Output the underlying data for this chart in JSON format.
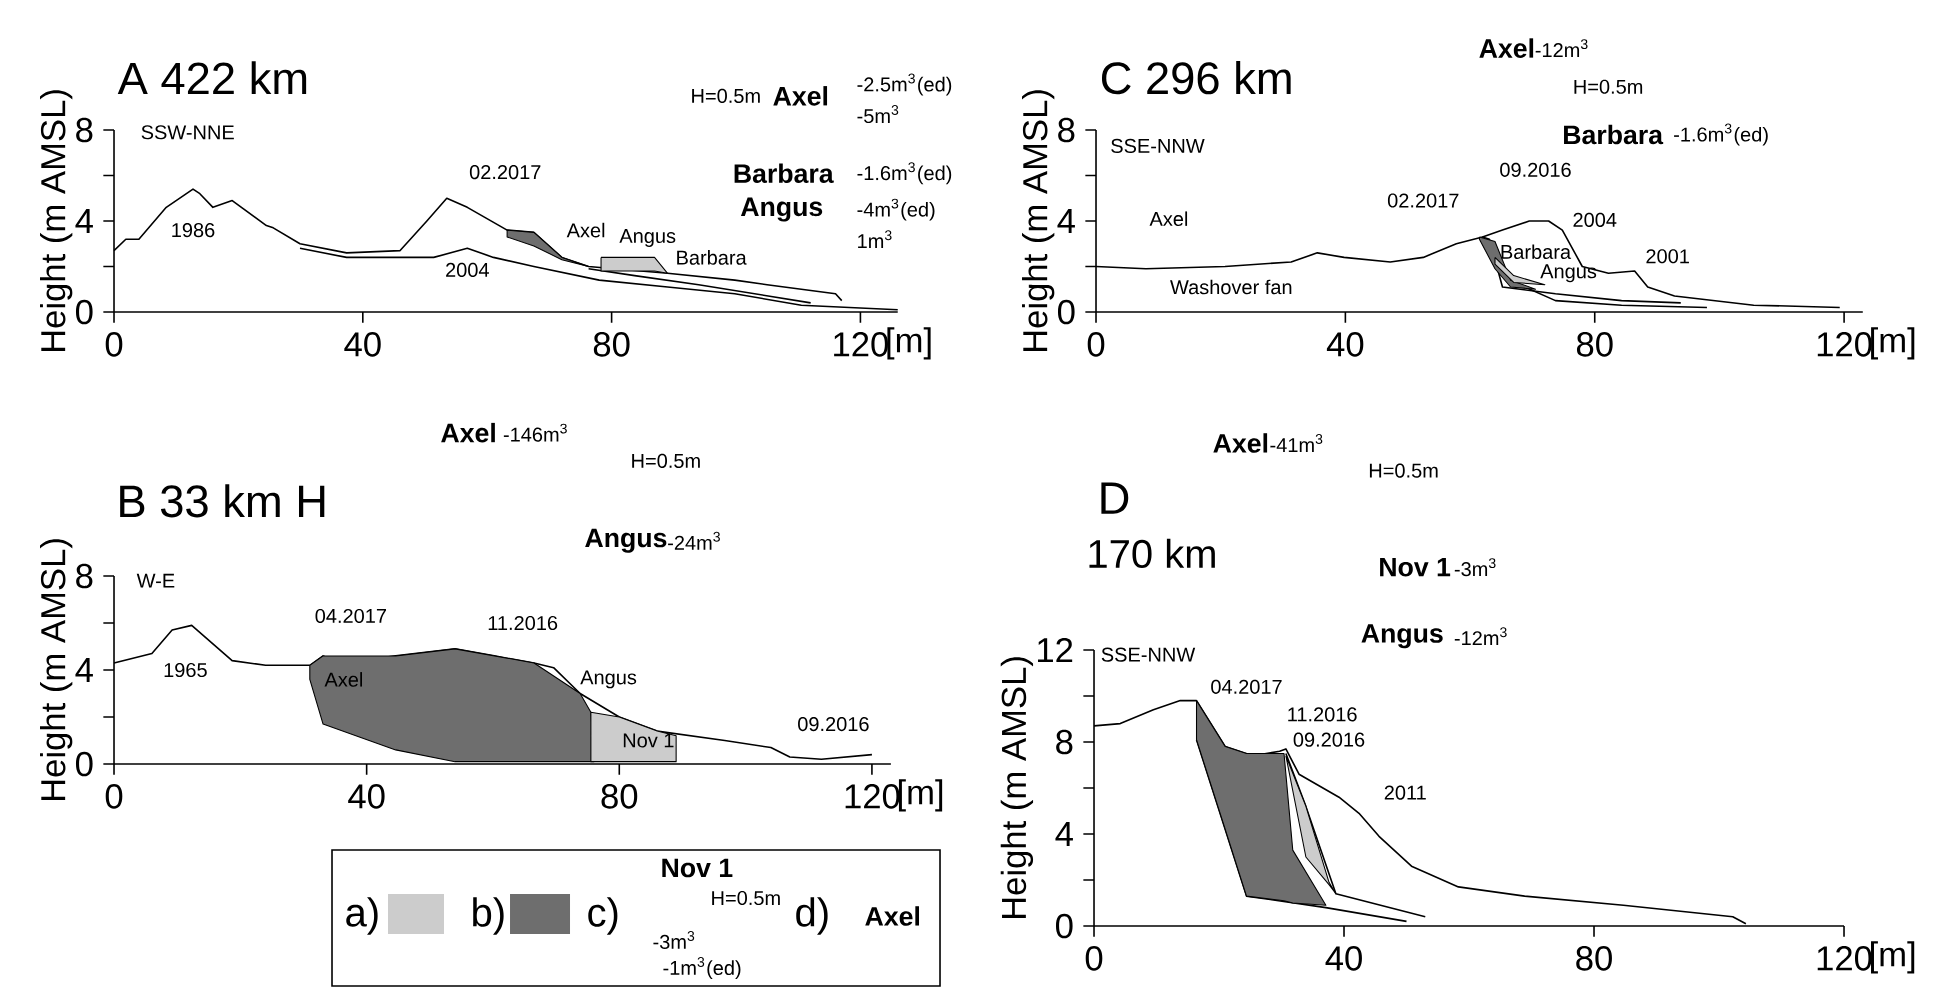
{
  "chart_data": [
    {
      "type": "line",
      "title": "A 422 km",
      "xlabel": "[m]",
      "ylabel": "Height (m AMSL)",
      "xlim": [
        0,
        126
      ],
      "ylim": [
        0,
        8
      ],
      "xticks": [
        0,
        40,
        80,
        120
      ],
      "yticks": [
        0,
        {
          "value": 2,
          "label": null
        },
        4,
        {
          "value": 6,
          "label": null
        },
        8
      ],
      "series": [
        {
          "color": "#000000",
          "x": [
            0,
            1.9,
            4,
            8.4,
            12.7,
            13.8,
            15.9,
            19,
            24.5,
            25.6,
            29.9,
            37.4,
            46,
            50.3,
            53.5,
            56.8,
            63.2,
            67.5,
            72,
            76.3,
            80.4,
            89,
            99.8,
            105,
            116,
            117
          ],
          "values": [
            2.7,
            3.2,
            3.2,
            4.6,
            5.4,
            5.2,
            4.6,
            4.9,
            3.8,
            3.7,
            3.0,
            2.6,
            2.7,
            4.0,
            5.0,
            4.6,
            3.6,
            3.5,
            2.4,
            2.0,
            1.9,
            1.7,
            1.4,
            1.2,
            0.8,
            0.5
          ]
        },
        {
          "color": "#000000",
          "x": [
            29.9,
            37.4,
            51.4,
            56.8,
            61,
            67.5,
            78,
            89,
            99.8,
            110.5,
            126
          ],
          "values": [
            2.8,
            2.4,
            2.4,
            2.8,
            2.4,
            2.0,
            1.4,
            1.1,
            0.8,
            0.3,
            0.1
          ]
        },
        {
          "color": "#000000",
          "x": [
            76.3,
            83.7,
            94,
            112
          ],
          "values": [
            1.9,
            1.6,
            1.2,
            0.4
          ]
        },
        {
          "type": "area",
          "color": "#6e6e6e",
          "x": [
            63.2,
            67.5,
            72,
            76.3,
            72,
            67.5,
            63.2
          ],
          "values": [
            3.6,
            3.5,
            2.4,
            2.0,
            2.3,
            2.9,
            3.3
          ]
        },
        {
          "type": "area",
          "color": "#cccccc",
          "x": [
            78.3,
            86.9,
            89,
            86.9,
            78.3
          ],
          "values": [
            2.4,
            2.4,
            1.7,
            1.8,
            1.8
          ]
        }
      ],
      "annotations": [
        "SSW-NNE",
        "H=0.5m",
        "Axel",
        "-2.5m$^{3}$(ed)",
        "-5m$^{3}$",
        "Barbara",
        "-1.6m$^{3}$(ed)",
        "Angus",
        "-4m$^{3}$(ed)",
        "1m$^{3}$",
        "1986",
        "02.2017",
        "2004",
        "Axel",
        "Angus",
        "Barbara"
      ]
    },
    {
      "type": "line",
      "title": "C 296 km",
      "xlabel": "[m]",
      "ylabel": "Height (m AMSL)",
      "xlim": [
        0,
        123
      ],
      "ylim": [
        0,
        8
      ],
      "xticks": [
        0,
        40,
        80,
        120
      ],
      "yticks": [
        0,
        {
          "value": 2,
          "label": null
        },
        4,
        {
          "value": 6,
          "label": null
        },
        8
      ],
      "series": [
        {
          "color": "#000000",
          "x": [
            0,
            8,
            20.7,
            31.3,
            35.5,
            39.8,
            47.2,
            52.5,
            57.8,
            62,
            63.1,
            65.2,
            73.7,
            84.3,
            93.8
          ],
          "values": [
            2.0,
            1.9,
            2.0,
            2.2,
            2.6,
            2.4,
            2.2,
            2.4,
            3.0,
            3.3,
            3.2,
            1.1,
            0.8,
            0.5,
            0.4
          ]
        },
        {
          "color": "#000000",
          "x": [
            62,
            65.2,
            69.5,
            72.6,
            74.8,
            78,
            82.2,
            86.4,
            88.5,
            92.8,
            105.5,
            119.3
          ],
          "values": [
            3.3,
            3.6,
            4.0,
            4.0,
            3.6,
            2.0,
            1.7,
            1.8,
            1.1,
            0.7,
            0.3,
            0.2
          ]
        },
        {
          "color": "#000000",
          "x": [
            63.1,
            66.3,
            73.7,
            84.3,
            98
          ],
          "values": [
            2.7,
            1.4,
            0.5,
            0.3,
            0.2
          ]
        },
        {
          "type": "area",
          "color": "#6e6e6e",
          "x": [
            61.5,
            64,
            66.5,
            70.5,
            66.5,
            64,
            61.5
          ],
          "values": [
            3.3,
            3.1,
            1.4,
            1.0,
            1.1,
            1.9,
            3.2
          ]
        },
        {
          "type": "area",
          "color": "#cccccc",
          "x": [
            64,
            67,
            72,
            67,
            64
          ],
          "values": [
            2.4,
            1.6,
            1.2,
            1.3,
            2.1
          ]
        }
      ],
      "annotations": [
        "SSE-NNW",
        "Axel",
        "-12m$^{3}$",
        "H=0.5m",
        "Barbara",
        "-1.6m$^{3}$(ed)",
        "Axel",
        "Washover fan",
        "02.2017",
        "09.2016",
        "2004",
        "2001",
        "Barbara",
        "Angus"
      ]
    },
    {
      "type": "line",
      "title": "B 33 km H",
      "xlabel": "[m]",
      "ylabel": "Height (m AMSL)",
      "xlim": [
        0,
        123
      ],
      "ylim": [
        0,
        8
      ],
      "xticks": [
        0,
        40,
        80,
        120
      ],
      "yticks": [
        0,
        {
          "value": 2,
          "label": null
        },
        4,
        {
          "value": 6,
          "label": null
        },
        8
      ],
      "series": [
        {
          "color": "#000000",
          "x": [
            0,
            6,
            9.2,
            12.3,
            18.7,
            24,
            31,
            33.1,
            36.2,
            44.6,
            54,
            60.2,
            66.5,
            69.6,
            73.8,
            80,
            86,
            96.7,
            104,
            107,
            112,
            120
          ],
          "values": [
            4.3,
            4.7,
            5.7,
            5.9,
            4.4,
            4.2,
            4.2,
            4.6,
            4.3,
            4.6,
            4.9,
            4.6,
            4.3,
            4.1,
            3.0,
            2.0,
            1.4,
            1.0,
            0.7,
            0.3,
            0.2,
            0.4
          ]
        },
        {
          "type": "area",
          "color": "#6e6e6e",
          "x": [
            31,
            33.1,
            44.6,
            54,
            66.5,
            73.8,
            75.5,
            76,
            54,
            44.6,
            33.1,
            31
          ],
          "values": [
            4.2,
            4.6,
            4.6,
            4.9,
            4.3,
            3.0,
            2.2,
            0.1,
            0.1,
            0.6,
            1.7,
            3.6
          ]
        },
        {
          "type": "area",
          "color": "#cccccc",
          "x": [
            75.5,
            80,
            86,
            89,
            89,
            75.5
          ],
          "values": [
            2.2,
            2.0,
            1.4,
            1.2,
            0.1,
            0.1
          ]
        }
      ],
      "annotations": [
        "W-E",
        "Axel",
        "-146m$^{3}$",
        "H=0.5m",
        "Angus",
        "-24m$^{3}$",
        "1965",
        "04.2017",
        "11.2016",
        "Axel",
        "Angus",
        "Nov 1",
        "09.2016"
      ]
    },
    {
      "type": "line",
      "title": "D",
      "subtitle": "170 km",
      "xlabel": "[m]",
      "ylabel": "Height (m AMSL)",
      "xlim": [
        0,
        120
      ],
      "ylim": [
        0,
        12
      ],
      "xticks": [
        0,
        40,
        80,
        120
      ],
      "yticks": [
        0,
        {
          "value": 2,
          "label": null
        },
        4,
        {
          "value": 6,
          "label": null
        },
        8,
        {
          "value": 10,
          "label": null
        },
        12
      ],
      "series": [
        {
          "color": "#000000",
          "x": [
            0,
            4.2,
            9.5,
            13.8,
            16.4,
            21,
            25.4,
            29.7,
            30.7,
            32.8,
            36,
            39.2,
            42.4,
            45.6,
            50.8,
            58.3,
            68.9,
            84.7,
            102.2,
            104.3
          ],
          "values": [
            8.7,
            8.8,
            9.4,
            9.8,
            9.8,
            7.8,
            7.4,
            7.6,
            7.7,
            6.6,
            6.1,
            5.6,
            4.9,
            3.9,
            2.6,
            1.7,
            1.3,
            0.9,
            0.4,
            0.1
          ]
        },
        {
          "color": "#000000",
          "x": [
            16.4,
            24.4,
            37.1,
            50
          ],
          "values": [
            8.1,
            1.3,
            0.8,
            0.2
          ]
        },
        {
          "color": "#000000",
          "x": [
            30.7,
            33.9,
            38.7,
            53
          ],
          "values": [
            7.5,
            5.2,
            1.4,
            0.4
          ]
        },
        {
          "type": "area",
          "color": "#6e6e6e",
          "x": [
            16.4,
            21,
            24.4,
            30.4,
            31.8,
            37.1,
            31.8,
            30.4,
            24.4,
            21,
            16.4
          ],
          "values": [
            9.8,
            7.8,
            7.5,
            7.5,
            3.3,
            0.9,
            1.0,
            1.1,
            1.3,
            4.2,
            8.1
          ]
        },
        {
          "type": "area",
          "color": "#cccccc",
          "x": [
            30.7,
            33.9,
            37.6,
            38.7,
            37.6,
            33.9
          ],
          "values": [
            7.4,
            5.2,
            1.9,
            1.4,
            1.8,
            3.0
          ]
        }
      ],
      "annotations": [
        "SSE-NNW",
        "Axel",
        "-41m$^{3}$",
        "H=0.5m",
        "Nov 1",
        "-3m$^{3}$",
        "Angus",
        "-12m$^{3}$",
        "04.2017",
        "11.2016",
        "09.2016",
        "2011"
      ]
    },
    {
      "type": "other",
      "colors": [
        "#cccccc",
        "#6e6e6e"
      ],
      "annotations": [
        "a)",
        "b)",
        "c)",
        "d)",
        "Nov 1",
        "H=0.5m",
        "-3m$^{3}$",
        "-1m$^{3}$(ed)",
        "Axel"
      ]
    }
  ]
}
